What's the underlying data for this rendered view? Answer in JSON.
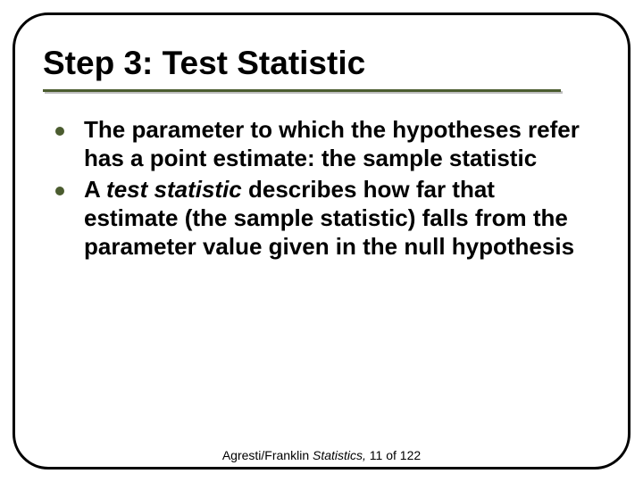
{
  "slide": {
    "frame": {
      "border_color": "#000000",
      "border_width": 3,
      "border_radius": 40,
      "bg_color": "#ffffff"
    },
    "title": {
      "text": "Step 3:  Test Statistic",
      "font_family": "Arial Black",
      "font_size": 37,
      "font_weight": 900,
      "color": "#000000",
      "underline_color": "#4b5c2f",
      "underline_width": 580,
      "underline_thickness": 3
    },
    "bullets": {
      "dot_color": "#4b5c2f",
      "dot_diameter": 10,
      "text_color": "#000000",
      "text_font_size": 26,
      "text_font_weight": 700,
      "items": [
        {
          "pre": "The parameter to which the hypotheses refer has a point estimate: the sample statistic",
          "ital": "",
          "post": ""
        },
        {
          "pre": "A ",
          "ital": "test statistic",
          "post": " describes how far that estimate (the sample statistic) falls from the parameter value given in the null hypothesis"
        }
      ]
    },
    "footer": {
      "pre": "Agresti/Franklin ",
      "ital": "Statistics,",
      "post": " 11 of 122",
      "font_size": 14,
      "color": "#000000"
    }
  }
}
